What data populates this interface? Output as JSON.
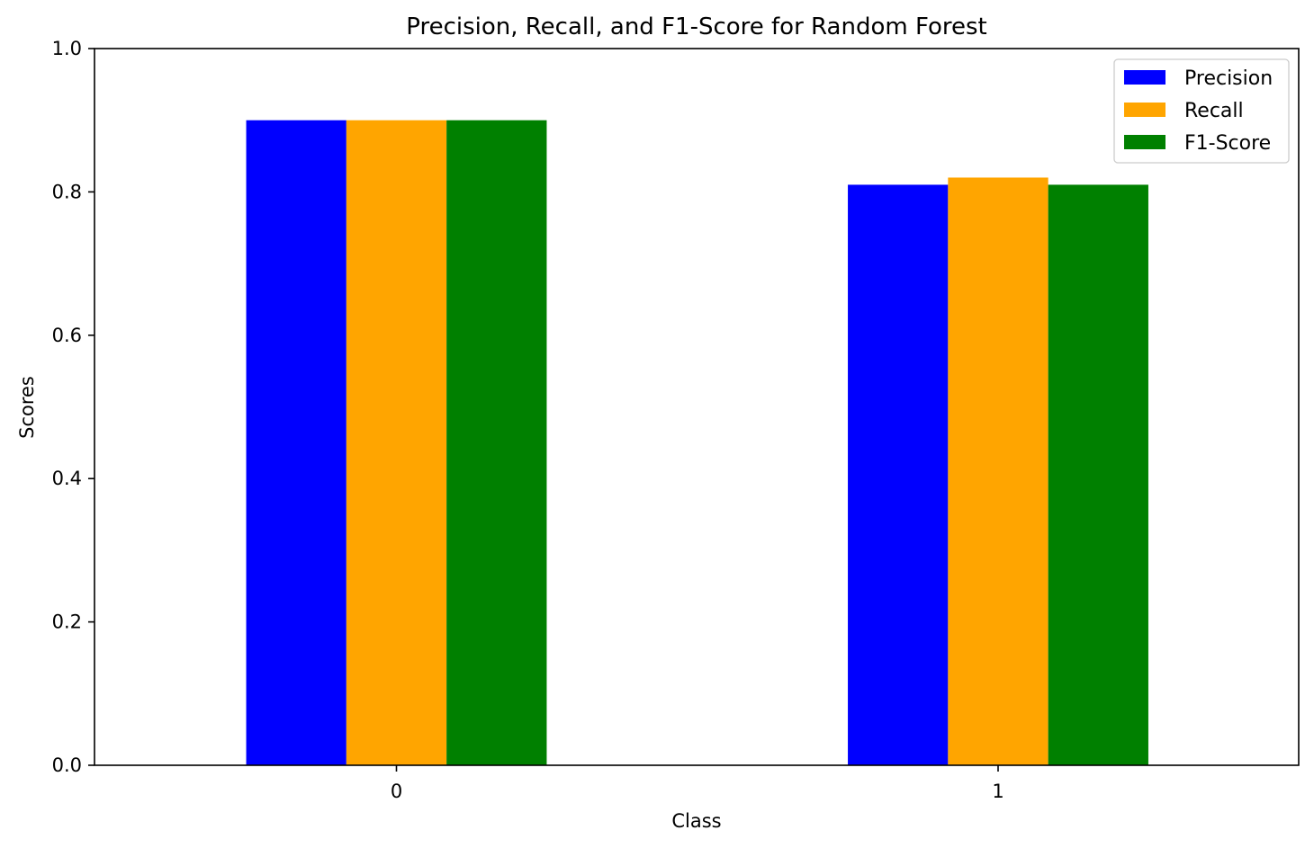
{
  "chart_data": {
    "type": "bar",
    "title": "Precision, Recall, and F1-Score for Random Forest",
    "xlabel": "Class",
    "ylabel": "Scores",
    "categories": [
      "0",
      "1"
    ],
    "ylim": [
      0,
      1.0
    ],
    "yticks": [
      "0.0",
      "0.2",
      "0.4",
      "0.6",
      "0.8",
      "1.0"
    ],
    "grid": false,
    "legend_position": "top-right",
    "series": [
      {
        "name": "Precision",
        "color": "#0000ff",
        "values": [
          0.9,
          0.81
        ]
      },
      {
        "name": "Recall",
        "color": "#ffa500",
        "values": [
          0.9,
          0.82
        ]
      },
      {
        "name": "F1-Score",
        "color": "#008000",
        "values": [
          0.9,
          0.81
        ]
      }
    ]
  }
}
